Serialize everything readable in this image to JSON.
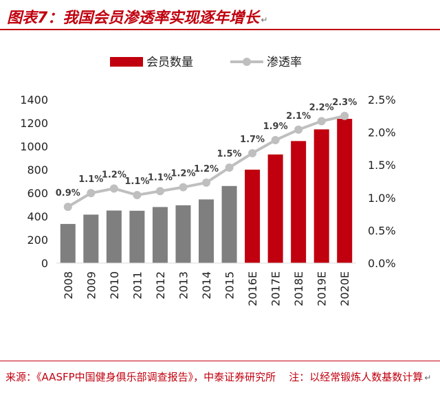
{
  "header": {
    "title": "图表7：我国会员渗透率实现逐年增长",
    "return_mark": "↵"
  },
  "chart_data": {
    "type": "bar",
    "categories": [
      "2008",
      "2009",
      "2010",
      "2011",
      "2012",
      "2013",
      "2014",
      "2015",
      "2016E",
      "2017E",
      "2018E",
      "2019E",
      "2020E"
    ],
    "series": [
      {
        "name": "会员数量",
        "type": "bar",
        "axis": "left",
        "values": [
          335,
          415,
          450,
          448,
          480,
          495,
          545,
          660,
          800,
          930,
          1045,
          1145,
          1235
        ]
      },
      {
        "name": "渗透率",
        "type": "line",
        "axis": "right",
        "values": [
          0.9,
          1.1,
          1.2,
          1.1,
          1.1,
          1.2,
          1.2,
          1.5,
          1.7,
          1.9,
          2.1,
          2.2,
          2.3
        ],
        "plot_values": [
          0.86,
          1.07,
          1.14,
          1.04,
          1.1,
          1.16,
          1.23,
          1.46,
          1.68,
          1.88,
          2.04,
          2.17,
          2.25
        ],
        "labels": [
          "0.9%",
          "1.1%",
          "1.2%",
          "1.1%",
          "1.1%",
          "1.2%",
          "1.2%",
          "1.5%",
          "1.7%",
          "1.9%",
          "2.1%",
          "2.2%",
          "2.3%"
        ]
      }
    ],
    "y_left": {
      "ticks": [
        "0",
        "200",
        "400",
        "600",
        "800",
        "1000",
        "1200",
        "1400"
      ],
      "lim": [
        0,
        1400
      ]
    },
    "y_right": {
      "ticks": [
        "0.0%",
        "0.5%",
        "1.0%",
        "1.5%",
        "2.0%",
        "2.5%"
      ],
      "lim": [
        0,
        2.5
      ]
    },
    "legend": {
      "position": "top-center"
    },
    "colors": {
      "actual_bar": "#7f7f7f",
      "forecast_bar": "#c0000e",
      "line": "#bfbfbf",
      "label": "#404040"
    },
    "forecast_start_index": 8,
    "grid": false
  },
  "footer": {
    "source": "来源：《AASFP中国健身俱乐部调查报告》，中泰证券研究所",
    "note": "注：以经常锻炼人数基数计算",
    "return_mark": "↵"
  }
}
